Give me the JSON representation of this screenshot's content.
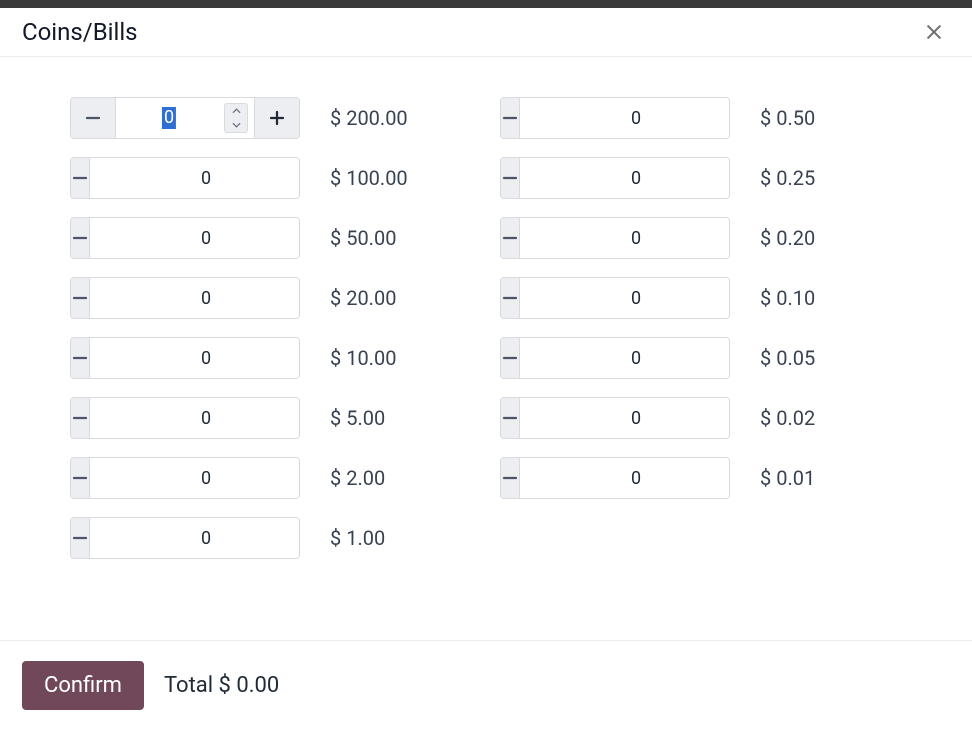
{
  "modal": {
    "title": "Coins/Bills",
    "close_icon": "close"
  },
  "columns": {
    "left": [
      {
        "value": "0",
        "label": "$ 200.00",
        "selected": true
      },
      {
        "value": "0",
        "label": "$ 100.00",
        "selected": false
      },
      {
        "value": "0",
        "label": "$ 50.00",
        "selected": false
      },
      {
        "value": "0",
        "label": "$ 20.00",
        "selected": false
      },
      {
        "value": "0",
        "label": "$ 10.00",
        "selected": false
      },
      {
        "value": "0",
        "label": "$ 5.00",
        "selected": false
      },
      {
        "value": "0",
        "label": "$ 2.00",
        "selected": false
      },
      {
        "value": "0",
        "label": "$ 1.00",
        "selected": false
      }
    ],
    "right": [
      {
        "value": "0",
        "label": "$ 0.50",
        "selected": false
      },
      {
        "value": "0",
        "label": "$ 0.25",
        "selected": false
      },
      {
        "value": "0",
        "label": "$ 0.20",
        "selected": false
      },
      {
        "value": "0",
        "label": "$ 0.10",
        "selected": false
      },
      {
        "value": "0",
        "label": "$ 0.05",
        "selected": false
      },
      {
        "value": "0",
        "label": "$ 0.02",
        "selected": false
      },
      {
        "value": "0",
        "label": "$ 0.01",
        "selected": false
      }
    ]
  },
  "footer": {
    "confirm_label": "Confirm",
    "total_label": "Total $ 0.00"
  },
  "colors": {
    "modal_bg": "#ffffff",
    "outer_bg": "#3a3a3a",
    "border": "#e9ecef",
    "stepper_border": "#d8dadd",
    "stepper_btn_bg": "#eceef1",
    "text_primary": "#1f2937",
    "text_secondary": "#374151",
    "confirm_bg": "#71485a",
    "confirm_fg": "#ffffff",
    "selection_bg": "#2f6fd3"
  }
}
